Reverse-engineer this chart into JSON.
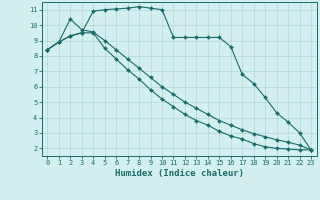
{
  "title": "",
  "xlabel": "Humidex (Indice chaleur)",
  "bg_color": "#d4efef",
  "grid_color": "#b8dada",
  "line_color": "#1a6b6b",
  "xlim": [
    -0.5,
    23.5
  ],
  "ylim": [
    1.5,
    11.5
  ],
  "xticks": [
    0,
    1,
    2,
    3,
    4,
    5,
    6,
    7,
    8,
    9,
    10,
    11,
    12,
    13,
    14,
    15,
    16,
    17,
    18,
    19,
    20,
    21,
    22,
    23
  ],
  "yticks": [
    2,
    3,
    4,
    5,
    6,
    7,
    8,
    9,
    10,
    11
  ],
  "line1_x": [
    0,
    1,
    2,
    3,
    4,
    5,
    6,
    7,
    8,
    9,
    10,
    11,
    12,
    13,
    14,
    15,
    16,
    17,
    18,
    19,
    20,
    21,
    22,
    23
  ],
  "line1_y": [
    8.4,
    8.9,
    9.3,
    9.5,
    10.9,
    11.0,
    11.05,
    11.1,
    11.2,
    11.1,
    11.0,
    9.2,
    9.2,
    9.2,
    9.2,
    9.2,
    8.6,
    6.8,
    6.2,
    5.3,
    4.3,
    3.7,
    3.0,
    1.9
  ],
  "line2_x": [
    0,
    1,
    2,
    3,
    4,
    5,
    6,
    7,
    8,
    9,
    10,
    11,
    12,
    13,
    14,
    15,
    16,
    17,
    18,
    19,
    20,
    21,
    22,
    23
  ],
  "line2_y": [
    8.4,
    8.9,
    9.3,
    9.5,
    9.5,
    8.5,
    7.8,
    7.1,
    6.5,
    5.8,
    5.2,
    4.7,
    4.2,
    3.8,
    3.5,
    3.1,
    2.8,
    2.6,
    2.3,
    2.1,
    2.0,
    1.95,
    1.9,
    1.9
  ],
  "line3_x": [
    0,
    1,
    2,
    3,
    4,
    5,
    6,
    7,
    8,
    9,
    10,
    11,
    12,
    13,
    14,
    15,
    16,
    17,
    18,
    19,
    20,
    21,
    22,
    23
  ],
  "line3_y": [
    8.4,
    8.9,
    10.4,
    9.7,
    9.55,
    9.0,
    8.4,
    7.8,
    7.2,
    6.6,
    6.0,
    5.5,
    5.0,
    4.6,
    4.2,
    3.8,
    3.5,
    3.2,
    2.95,
    2.75,
    2.55,
    2.4,
    2.2,
    1.9
  ]
}
